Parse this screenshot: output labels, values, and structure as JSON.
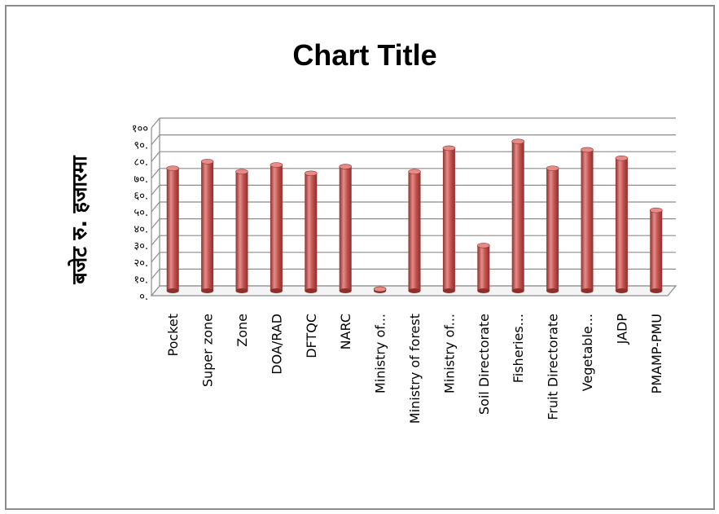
{
  "chart_data": {
    "type": "bar",
    "title": "Chart Title",
    "xlabel": "",
    "ylabel": "बजेट रु. हजारमा",
    "ylim": [
      0,
      100
    ],
    "yticks": [
      {
        "value": 0,
        "label": "०."
      },
      {
        "value": 10,
        "label": "१०."
      },
      {
        "value": 20,
        "label": "२०."
      },
      {
        "value": 30,
        "label": "३०."
      },
      {
        "value": 40,
        "label": "४०."
      },
      {
        "value": 50,
        "label": "५०."
      },
      {
        "value": 60,
        "label": "६०."
      },
      {
        "value": 70,
        "label": "७०."
      },
      {
        "value": 80,
        "label": "८०."
      },
      {
        "value": 90,
        "label": "९०."
      },
      {
        "value": 100,
        "label": "१००"
      }
    ],
    "categories": [
      "Pocket",
      "Super zone",
      "Zone",
      "DOA/RAD",
      "DFTQC",
      "NARC",
      "Ministry of...",
      "Ministry of forest",
      "Ministry of...",
      "Soil Directorate",
      "Fisheries...",
      "Fruit Directorate",
      "Vegetable...",
      "JADP",
      "PMAMP-PMU"
    ],
    "values": [
      73,
      77,
      71,
      75,
      70,
      74,
      1,
      71,
      85,
      27,
      89,
      73,
      84,
      79,
      48
    ],
    "grid": true,
    "legend": "none",
    "bar_color": "#c0504d",
    "bar_dark_color": "#8e2f2c",
    "bar_light_color": "#e58c89",
    "grid_color": "#8c8c8c"
  }
}
